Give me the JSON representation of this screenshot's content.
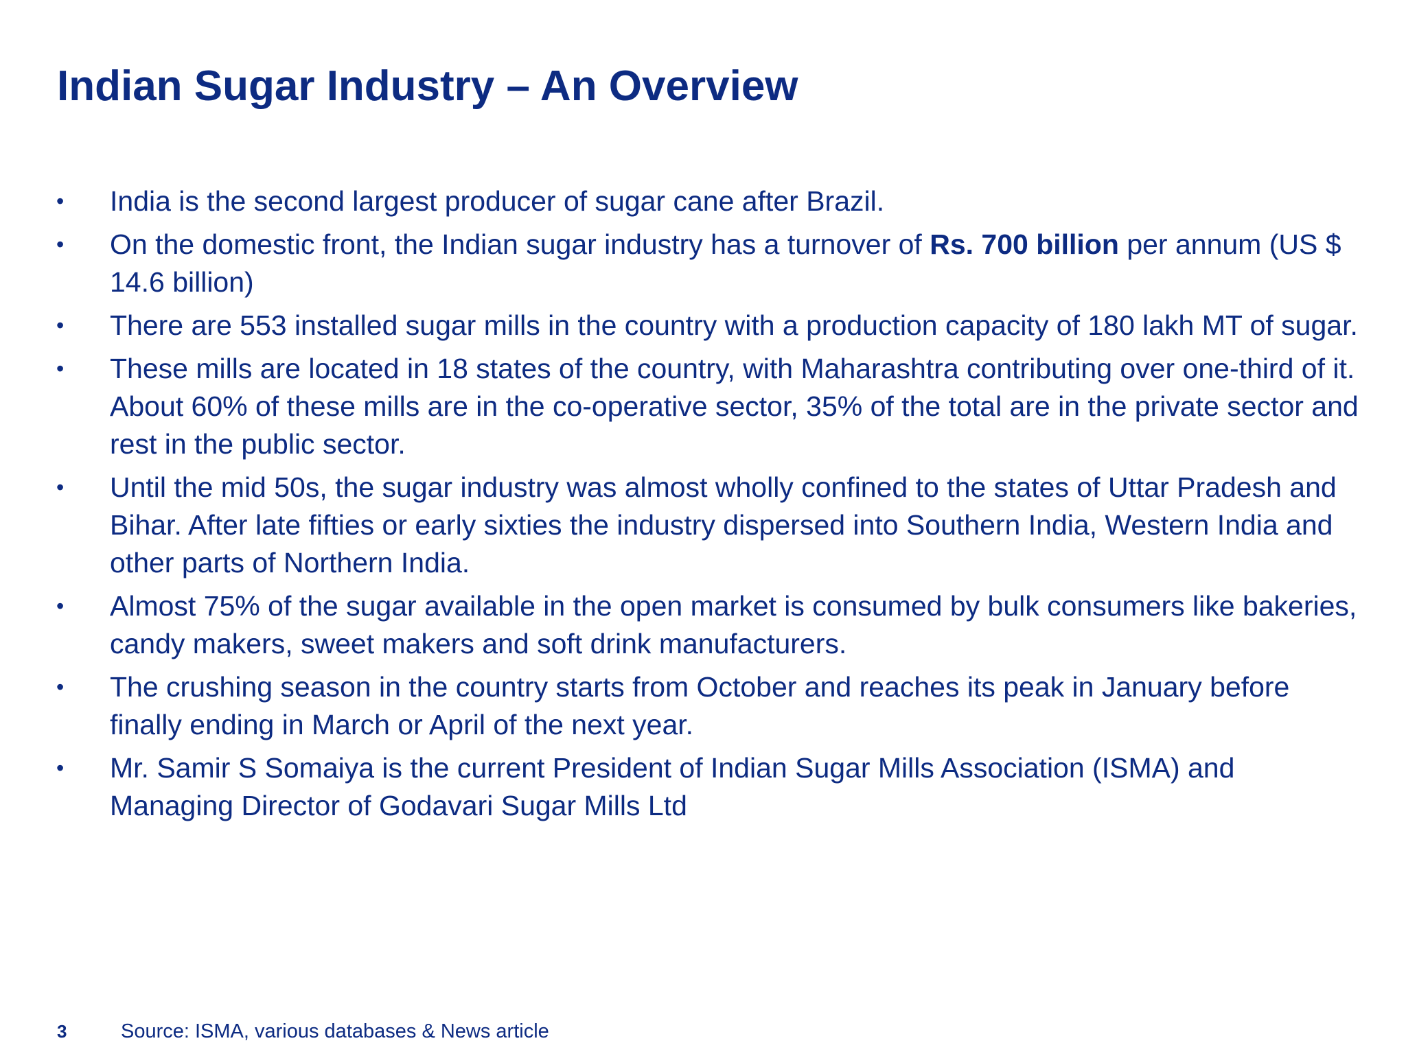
{
  "slide": {
    "title": "Indian Sugar Industry – An Overview",
    "bullet_glyph": "•",
    "bullets": [
      {
        "text": "India is the second largest producer of sugar cane after Brazil."
      },
      {
        "before": "On the domestic front, the Indian sugar industry has a turnover of ",
        "bold": "Rs. 700 billion",
        "after": " per annum (US $ 14.6 billion)"
      },
      {
        "text": "There are 553 installed sugar mills in the country with a production capacity of 180 lakh MT of sugar."
      },
      {
        "text": "These mills are located in 18 states of the country, with Maharashtra contributing over one-third of it. About 60% of these mills are in the co-operative sector, 35% of the total are in the private sector and rest in the public sector."
      },
      {
        "text": "Until the mid 50s, the sugar industry was almost wholly confined to the states of Uttar Pradesh and Bihar. After late fifties or early sixties the industry dispersed into Southern India, Western India and other parts of Northern India."
      },
      {
        "text": "Almost 75% of the sugar available in the open market is consumed by bulk consumers like bakeries, candy makers, sweet makers and soft drink manufacturers."
      },
      {
        "text": "The crushing season in the country starts from October and reaches its peak in January before finally ending in March or April of the next year."
      },
      {
        "text": "Mr. Samir S Somaiya is the current President of Indian Sugar Mills Association (ISMA) and Managing Director of Godavari Sugar Mills Ltd"
      }
    ],
    "page_number": "3",
    "source": "Source: ISMA, various databases & News article",
    "colors": {
      "text": "#0d2b82",
      "background": "#ffffff"
    }
  }
}
